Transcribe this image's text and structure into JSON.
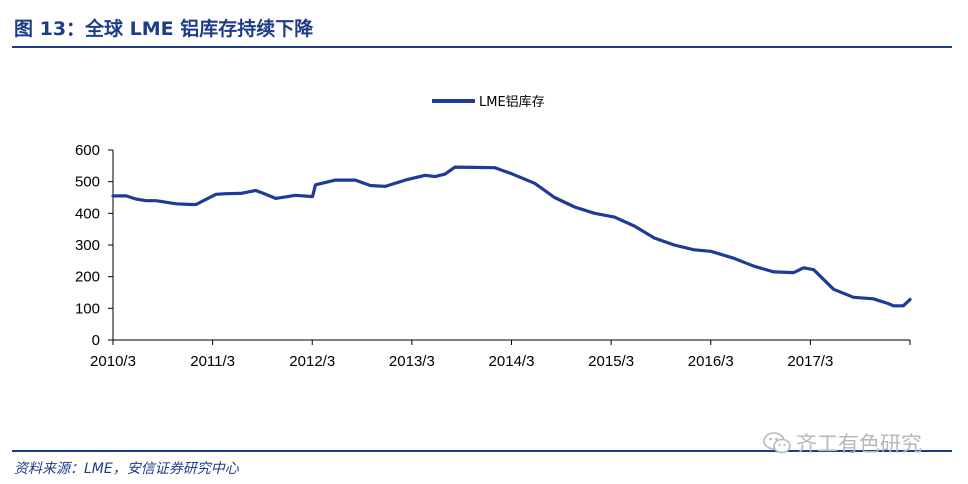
{
  "header": {
    "title": "图 13：全球 LME 铝库存持续下降"
  },
  "footer": {
    "source": "资料来源：LME，安信证券研究中心"
  },
  "watermark": {
    "text": "齐工有色研究",
    "icon": "wechat-icon"
  },
  "colors": {
    "accent": "#1f3c88",
    "series": "#1f3b96"
  },
  "chart_data": {
    "type": "line",
    "title": "",
    "xlabel": "",
    "ylabel": "",
    "ylim": [
      0,
      600
    ],
    "yticks": [
      0,
      100,
      200,
      300,
      400,
      500,
      600
    ],
    "xlim": [
      2010.167,
      2018.167
    ],
    "xticks": [
      {
        "label": "2010/3",
        "value": 2010.167
      },
      {
        "label": "2011/3",
        "value": 2011.167
      },
      {
        "label": "2012/3",
        "value": 2012.167
      },
      {
        "label": "2013/3",
        "value": 2013.167
      },
      {
        "label": "2014/3",
        "value": 2014.167
      },
      {
        "label": "2015/3",
        "value": 2015.167
      },
      {
        "label": "2016/3",
        "value": 2016.167
      },
      {
        "label": "2017/3",
        "value": 2017.167
      }
    ],
    "grid": false,
    "legend": "top-center",
    "series": [
      {
        "name": "LME铝库存",
        "x": [
          2010.167,
          2010.3,
          2010.4,
          2010.5,
          2010.6,
          2010.8,
          2010.95,
          2011.0,
          2011.2,
          2011.3,
          2011.45,
          2011.6,
          2011.7,
          2011.8,
          2012.0,
          2012.17,
          2012.2,
          2012.4,
          2012.6,
          2012.75,
          2012.9,
          2013.1,
          2013.3,
          2013.4,
          2013.5,
          2013.6,
          2013.8,
          2014.0,
          2014.17,
          2014.4,
          2014.6,
          2014.8,
          2015.0,
          2015.2,
          2015.4,
          2015.6,
          2015.8,
          2016.0,
          2016.167,
          2016.4,
          2016.6,
          2016.8,
          2017.0,
          2017.1,
          2017.2,
          2017.4,
          2017.6,
          2017.8,
          2017.95,
          2018.0,
          2018.05,
          2018.1,
          2018.167
        ],
        "y": [
          455,
          455,
          445,
          440,
          440,
          430,
          428,
          428,
          460,
          462,
          463,
          472,
          460,
          447,
          457,
          453,
          490,
          505,
          505,
          488,
          485,
          505,
          520,
          516,
          524,
          546,
          545,
          544,
          525,
          495,
          450,
          420,
          400,
          388,
          360,
          322,
          300,
          285,
          280,
          258,
          233,
          215,
          213,
          228,
          222,
          160,
          135,
          130,
          115,
          108,
          108,
          108,
          128
        ]
      }
    ]
  }
}
